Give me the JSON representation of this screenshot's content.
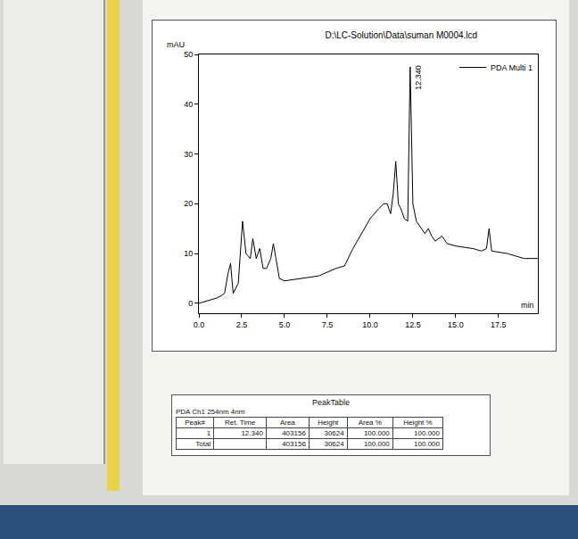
{
  "chart_data": {
    "type": "line",
    "title": "D:\\LC-Solution\\Data\\suman M0004.lcd",
    "x_label": "min",
    "y_label": "mAU",
    "legend": "top right",
    "grid": false,
    "xlim": [
      0,
      19.8
    ],
    "xticks": [
      {
        "value": 0,
        "label": "0.0"
      },
      {
        "value": 2.5,
        "label": "2.5"
      },
      {
        "value": 5,
        "label": "5.0"
      },
      {
        "value": 7.5,
        "label": "7.5"
      },
      {
        "value": 10,
        "label": "10.0"
      },
      {
        "value": 12.5,
        "label": "12.5"
      },
      {
        "value": 15,
        "label": "15.0"
      },
      {
        "value": 17.5,
        "label": "17.5"
      }
    ],
    "ylim": [
      -2,
      50
    ],
    "yticks": [
      0,
      10,
      20,
      30,
      40,
      50
    ],
    "annotations": [
      {
        "x": 12.34,
        "y": 47.5,
        "text": "12.340"
      }
    ],
    "series": [
      {
        "name": "PDA Multi 1",
        "color": "#000000",
        "x": [
          0.0,
          0.5,
          1.0,
          1.3,
          1.5,
          1.7,
          1.85,
          2.0,
          2.3,
          2.55,
          2.75,
          3.0,
          3.15,
          3.35,
          3.55,
          3.75,
          3.95,
          4.2,
          4.35,
          4.5,
          4.7,
          5.0,
          6.0,
          7.0,
          8.0,
          8.5,
          9.0,
          9.5,
          10.0,
          10.5,
          10.8,
          11.0,
          11.2,
          11.35,
          11.5,
          11.65,
          11.8,
          12.0,
          12.2,
          12.34,
          12.5,
          12.7,
          13.0,
          13.2,
          13.4,
          13.6,
          13.8,
          14.0,
          14.2,
          14.5,
          15.0,
          16.0,
          16.5,
          16.8,
          16.95,
          17.1,
          18.0,
          19.0,
          19.8
        ],
        "values": [
          0,
          0.5,
          1,
          1.5,
          2,
          6,
          8,
          2,
          4,
          16.5,
          10,
          9,
          13,
          9,
          11,
          7,
          7,
          9,
          12,
          9,
          5,
          4.5,
          5,
          5.5,
          7,
          7.5,
          11,
          14,
          17,
          19,
          20,
          20,
          18,
          22,
          28.5,
          20,
          19,
          17,
          16.5,
          47.5,
          20,
          16.5,
          15,
          14,
          15,
          13.5,
          12.5,
          13,
          13.5,
          12,
          11.5,
          11,
          10.5,
          11,
          15,
          10.5,
          10,
          9,
          9
        ]
      }
    ]
  },
  "peak_table": {
    "title": "PeakTable",
    "subtitle": "PDA Ch1 254nm 4nm",
    "columns": [
      "Peak#",
      "Ret. Time",
      "Area",
      "Height",
      "Area %",
      "Height %"
    ],
    "rows": [
      [
        "1",
        "12.340",
        "403156",
        "30624",
        "100.000",
        "100.000"
      ],
      [
        "Total",
        null,
        "403156",
        "30624",
        "100.000",
        "100.000"
      ]
    ]
  }
}
